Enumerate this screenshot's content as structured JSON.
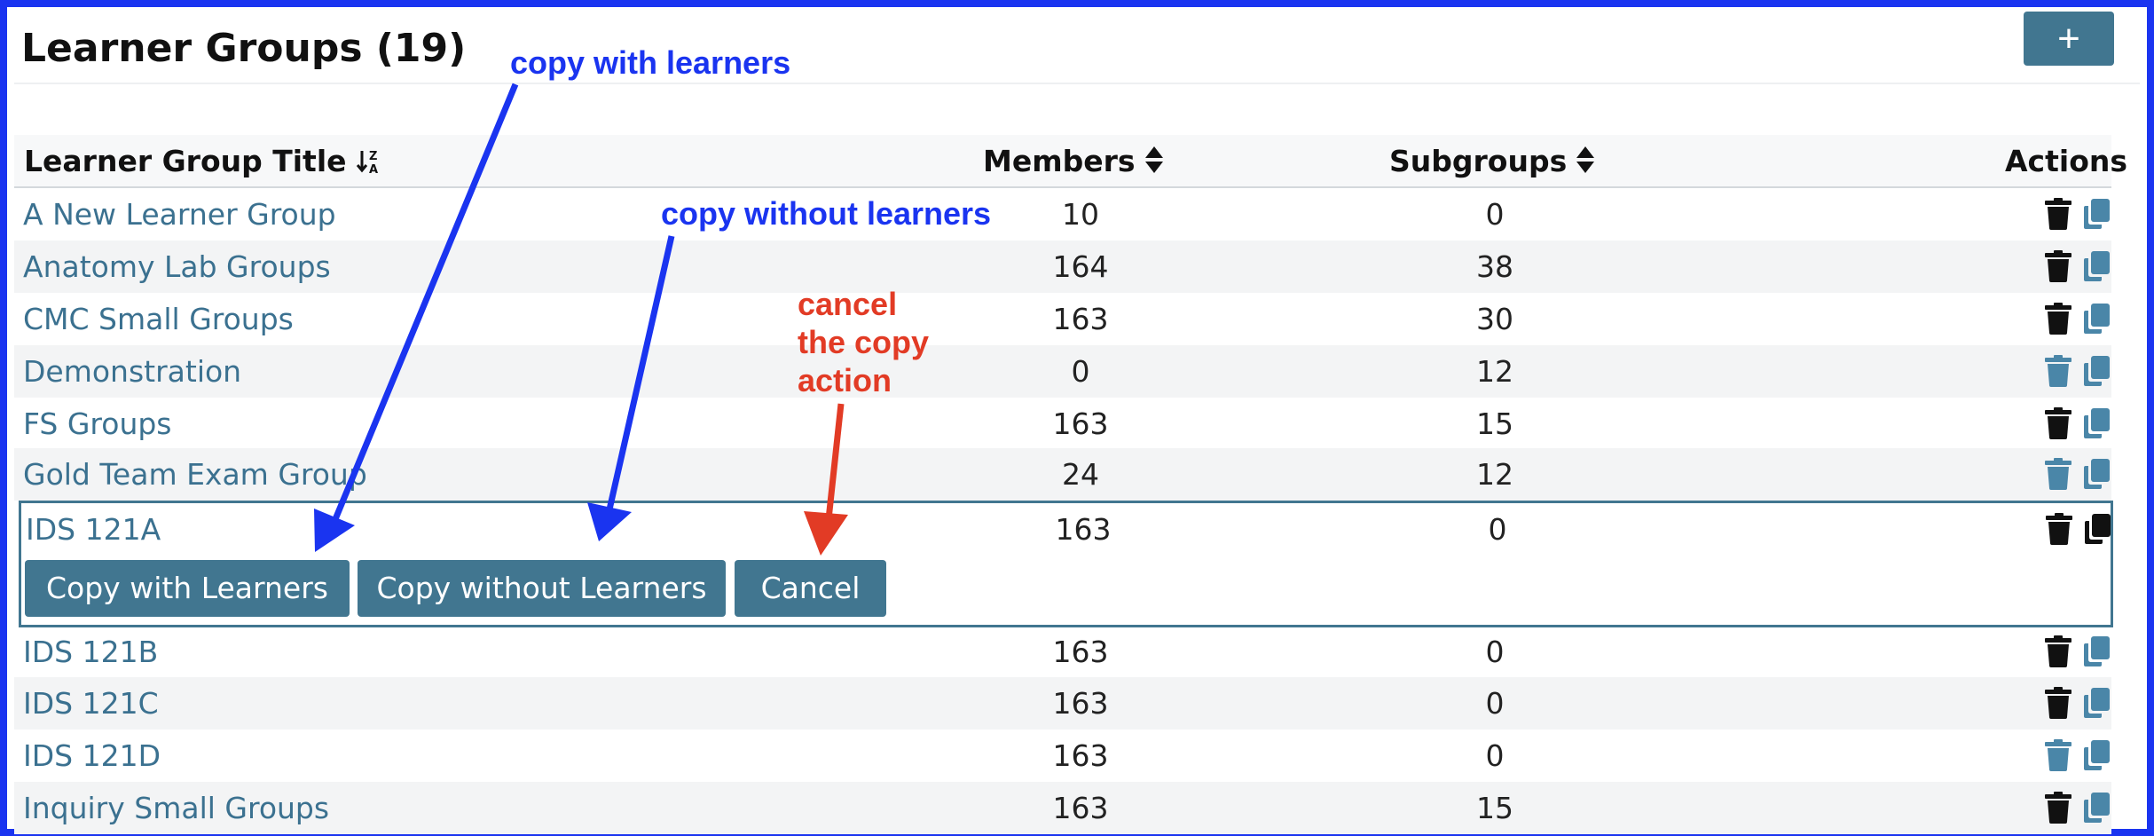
{
  "header": {
    "title": "Learner Groups (19)",
    "add_label": "+"
  },
  "table": {
    "columns": [
      "Learner Group Title",
      "Members",
      "Subgroups",
      "Actions"
    ],
    "rows": [
      {
        "title": "A New Learner Group",
        "members": "10",
        "subgroups": "0"
      },
      {
        "title": "Anatomy Lab Groups",
        "members": "164",
        "subgroups": "38"
      },
      {
        "title": "CMC Small Groups",
        "members": "163",
        "subgroups": "30"
      },
      {
        "title": "Demonstration",
        "members": "0",
        "subgroups": "12"
      },
      {
        "title": "FS Groups",
        "members": "163",
        "subgroups": "15"
      },
      {
        "title": "Gold Team Exam Group",
        "members": "24",
        "subgroups": "12"
      },
      {
        "title": "IDS 121A",
        "members": "163",
        "subgroups": "0"
      },
      {
        "title": "IDS 121B",
        "members": "163",
        "subgroups": "0"
      },
      {
        "title": "IDS 121C",
        "members": "163",
        "subgroups": "0"
      },
      {
        "title": "IDS 121D",
        "members": "163",
        "subgroups": "0"
      },
      {
        "title": "Inquiry Small Groups",
        "members": "163",
        "subgroups": "15"
      }
    ]
  },
  "copy_actions": {
    "copy_with": "Copy with Learners",
    "copy_without": "Copy without Learners",
    "cancel": "Cancel"
  },
  "annotations": {
    "copy_with": "copy with learners",
    "copy_without": "copy without learners",
    "cancel_line1": "cancel",
    "cancel_line2": "the copy",
    "cancel_line3": "action"
  },
  "colors": {
    "accent": "#417690",
    "link": "#3b7190",
    "icon_dark": "#111111",
    "icon_muted": "#4a86a8",
    "annotation_blue": "#1a34f0",
    "annotation_red": "#e23b25"
  }
}
